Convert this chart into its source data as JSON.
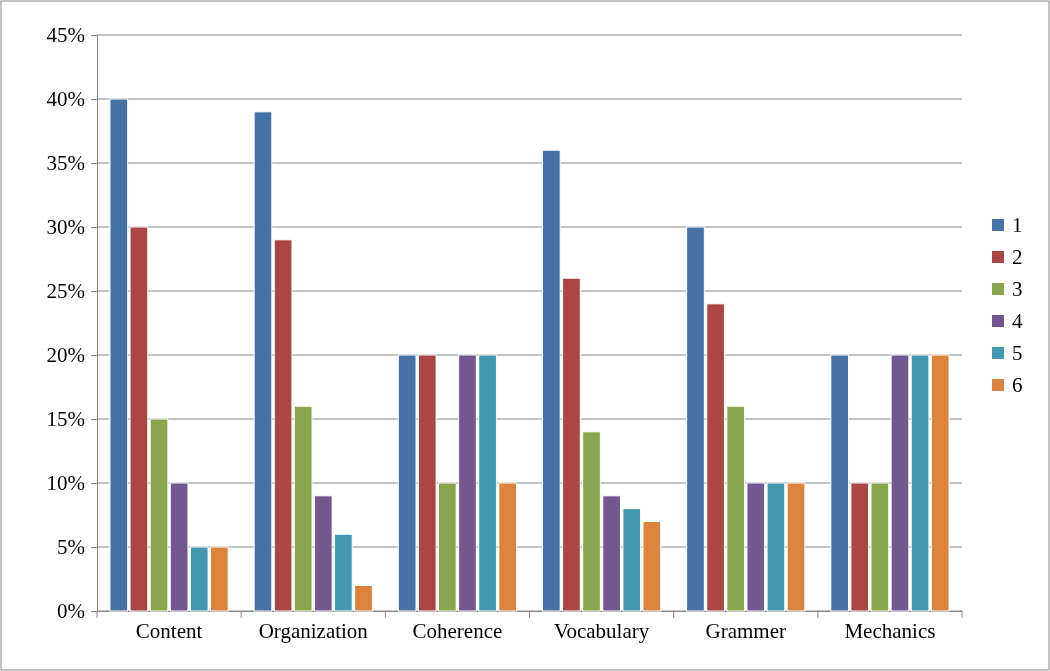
{
  "chart_data": {
    "type": "bar",
    "categories": [
      "Content",
      "Organization",
      "Coherence",
      "Vocabulary",
      "Grammer",
      "Mechanics"
    ],
    "series": [
      {
        "name": "1",
        "color": "#4572a7",
        "values": [
          40,
          39,
          20,
          36,
          30,
          20
        ]
      },
      {
        "name": "2",
        "color": "#aa4643",
        "values": [
          30,
          29,
          20,
          26,
          24,
          10
        ]
      },
      {
        "name": "3",
        "color": "#89a54e",
        "values": [
          15,
          16,
          10,
          14,
          16,
          10
        ]
      },
      {
        "name": "4",
        "color": "#71588f",
        "values": [
          10,
          9,
          20,
          9,
          10,
          20
        ]
      },
      {
        "name": "5",
        "color": "#4198af",
        "values": [
          5,
          6,
          20,
          8,
          10,
          20
        ]
      },
      {
        "name": "6",
        "color": "#db843d",
        "values": [
          5,
          2,
          10,
          7,
          10,
          20
        ]
      }
    ],
    "ylim": [
      0,
      45
    ],
    "yticks": [
      {
        "value": 0,
        "label": "0%"
      },
      {
        "value": 5,
        "label": "5%"
      },
      {
        "value": 10,
        "label": "10%"
      },
      {
        "value": 15,
        "label": "15%"
      },
      {
        "value": 20,
        "label": "20%"
      },
      {
        "value": 25,
        "label": "25%"
      },
      {
        "value": 30,
        "label": "30%"
      },
      {
        "value": 35,
        "label": "35%"
      },
      {
        "value": 40,
        "label": "40%"
      },
      {
        "value": 45,
        "label": "45%"
      }
    ],
    "grid": "y",
    "legend": "right"
  }
}
